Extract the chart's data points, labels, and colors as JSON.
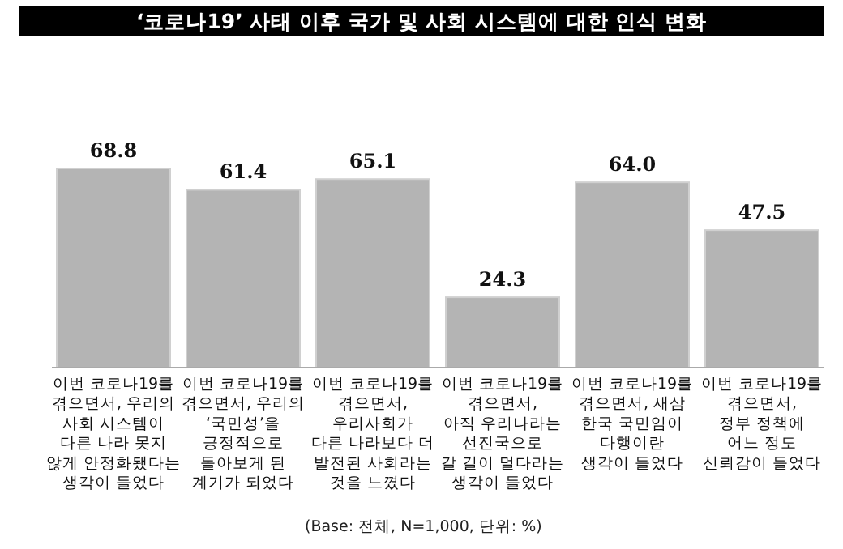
{
  "chart_data": {
    "type": "bar",
    "title": "‘코로나19’ 사태 이후 국가 및 사회 시스템에 대한 인식 변화",
    "categories": [
      "이번 코로나19를\n겪으면서, 우리의\n사회 시스템이\n다른 나라 못지\n않게 안정화됐다는\n생각이 들었다",
      "이번 코로나19를\n겪으면서, 우리의\n‘국민성’을\n긍정적으로\n돌아보게 된\n계기가 되었다",
      "이번 코로나19를\n겪으면서,\n우리사회가\n다른 나라보다 더\n발전된 사회라는\n것을 느꼈다",
      "이번 코로나19를\n겪으면서,\n아직 우리나라는\n선진국으로\n갈 길이 멀다라는\n생각이 들었다",
      "이번 코로나19를\n겪으면서, 새삼\n한국 국민임이\n다행이란\n생각이 들었다",
      "이번 코로나19를\n겪으면서,\n정부 정책에\n어느 정도\n신뢰감이 들었다"
    ],
    "values": [
      68.8,
      61.4,
      65.1,
      24.3,
      64.0,
      47.5
    ],
    "color": "#b4b4b4",
    "value_labels": [
      "68.8",
      "61.4",
      "65.1",
      "24.3",
      "64.0",
      "47.5"
    ],
    "annotations": [
      "(Base: 전체, N=1,000, 단위: %)"
    ]
  }
}
